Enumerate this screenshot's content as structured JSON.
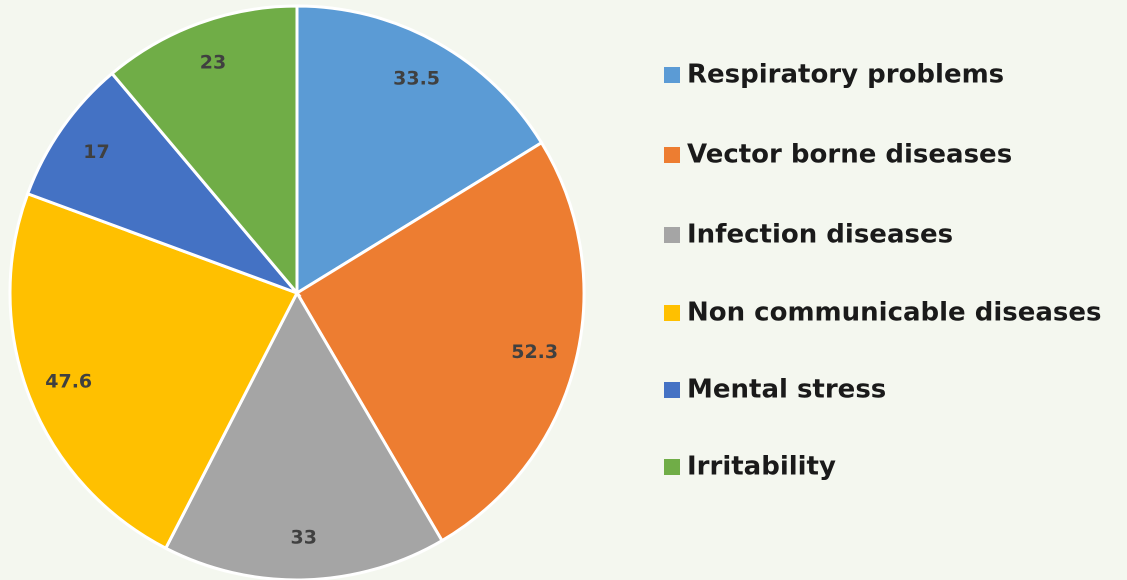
{
  "chart_data": {
    "type": "pie",
    "categories": [
      "Respiratory problems",
      "Vector borne diseases",
      "Infection diseases",
      "Non communicable diseases",
      "Mental stress",
      "Irritability"
    ],
    "values": [
      33.5,
      52.3,
      33,
      47.6,
      17,
      23
    ],
    "colors": [
      "#5b9bd5",
      "#ed7d31",
      "#a5a5a5",
      "#ffc000",
      "#4472c4",
      "#70ad47"
    ],
    "legend": "right"
  }
}
